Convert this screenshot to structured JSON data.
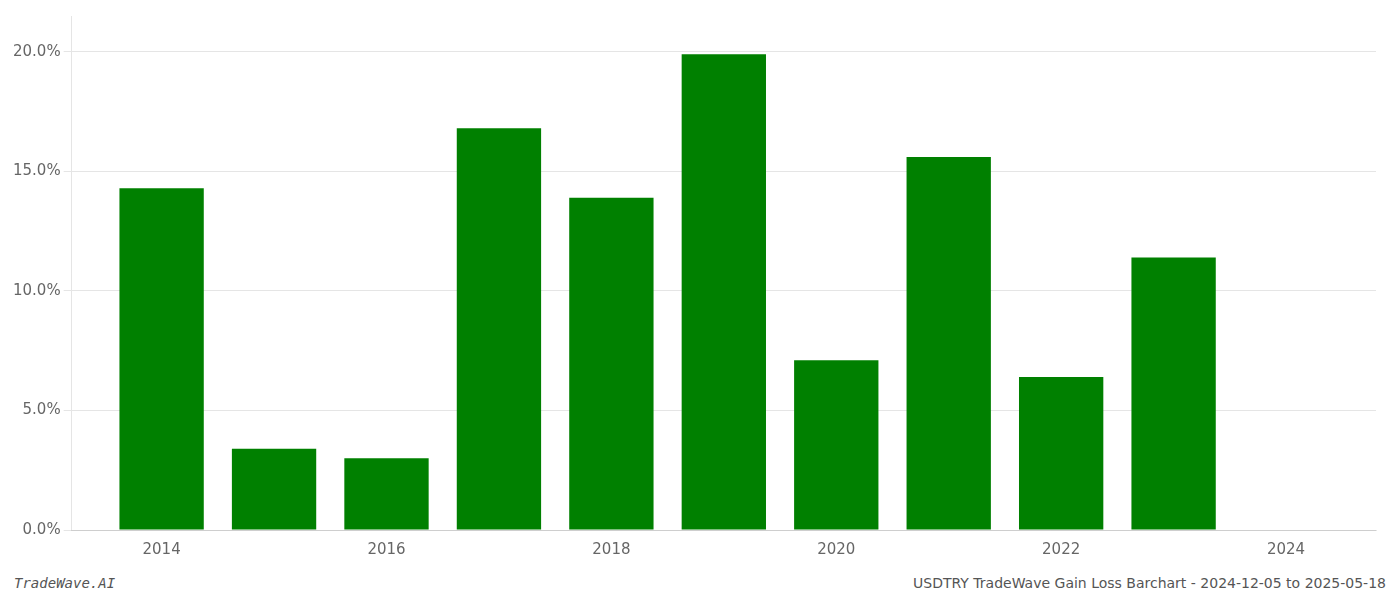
{
  "chart_data": {
    "type": "bar",
    "x": [
      2014,
      2015,
      2016,
      2017,
      2018,
      2019,
      2020,
      2021,
      2022,
      2023
    ],
    "values": [
      0.143,
      0.034,
      0.03,
      0.168,
      0.139,
      0.199,
      0.071,
      0.156,
      0.064,
      0.114
    ],
    "color": "#008000",
    "xlim": [
      2013.2,
      2024.8
    ],
    "xticks": [
      2014,
      2016,
      2018,
      2020,
      2022,
      2024
    ],
    "ylim": [
      0,
      0.215
    ],
    "yticks": [
      {
        "value": 0.0,
        "label": "0.0%"
      },
      {
        "value": 0.05,
        "label": "5.0%"
      },
      {
        "value": 0.1,
        "label": "10.0%"
      },
      {
        "value": 0.15,
        "label": "15.0%"
      },
      {
        "value": 0.2,
        "label": "20.0%"
      }
    ],
    "grid": true,
    "annotations": [
      "TradeWave.AI",
      "USDTRY TradeWave Gain Loss Barchart - 2024-12-05 to 2025-05-18"
    ]
  }
}
